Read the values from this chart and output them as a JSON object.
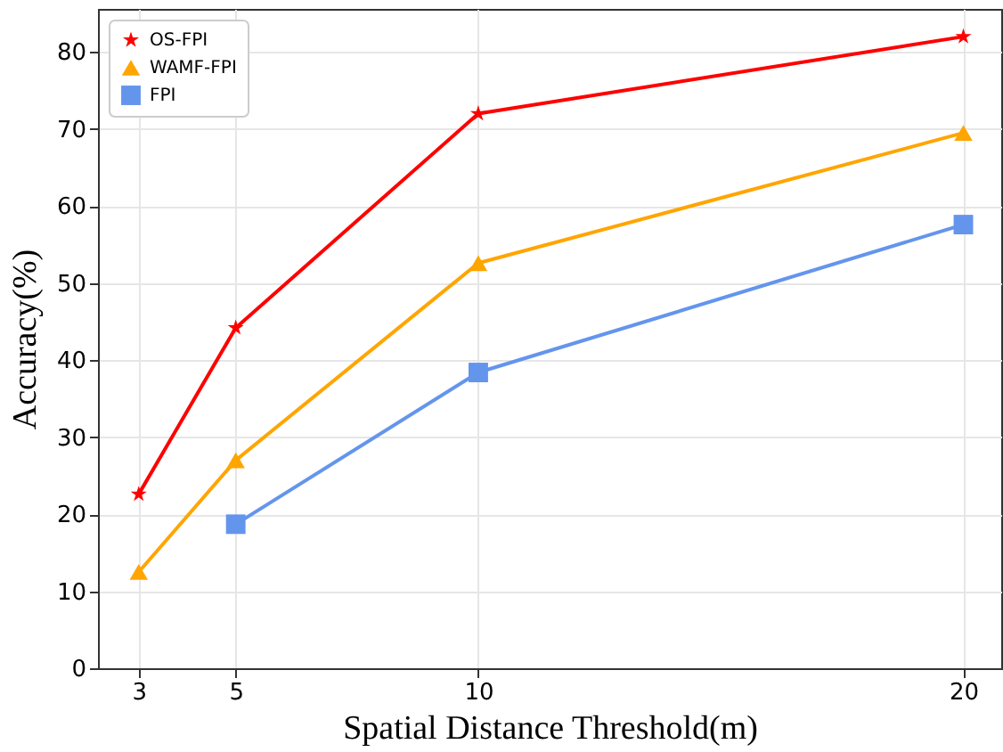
{
  "chart_data": {
    "type": "line",
    "xlabel": "Spatial Distance Threshold(m)",
    "ylabel": "Accuracy(%)",
    "x": [
      3,
      5,
      10,
      20
    ],
    "series": [
      {
        "name": "OS-FPI",
        "color": "#ff0000",
        "marker": "star",
        "values": [
          22.6,
          44.2,
          72.0,
          82.0
        ]
      },
      {
        "name": "WAMF-FPI",
        "color": "#ffa500",
        "marker": "triangle",
        "values": [
          12.5,
          27.0,
          52.6,
          69.5
        ]
      },
      {
        "name": "FPI",
        "color": "#6495ed",
        "marker": "square",
        "values": [
          null,
          18.7,
          38.4,
          57.6
        ]
      }
    ],
    "xlim": [
      2.16,
      20.78
    ],
    "xticks": [
      3,
      5,
      10,
      20
    ],
    "ylim": [
      0,
      85.6
    ],
    "yticks": [
      0,
      10,
      20,
      30,
      40,
      50,
      60,
      70,
      80
    ],
    "grid": true,
    "legend": "top left",
    "line_style": "solid"
  }
}
